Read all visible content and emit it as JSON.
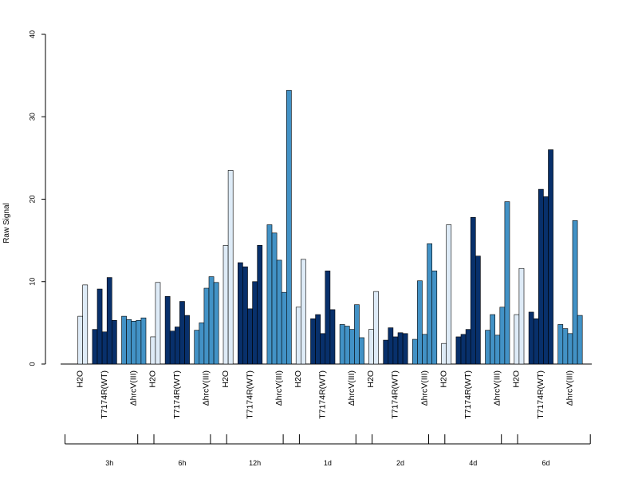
{
  "chart_data": {
    "type": "bar",
    "ylabel": "Raw Signal",
    "ylim": [
      0,
      40
    ],
    "yticks": [
      0,
      10,
      20,
      30,
      40
    ],
    "condition_colors": {
      "H2O": "#deebf7",
      "T7174R(WT)": "#08306b",
      "ΔhrcV(III)": "#4292c6"
    },
    "groups": [
      {
        "time": "3h",
        "conditions": [
          {
            "name": "H2O",
            "values": [
              0,
              5.8,
              9.6
            ]
          },
          {
            "name": "T7174R(WT)",
            "values": [
              4.2,
              9.1,
              3.9,
              10.5,
              5.3
            ]
          },
          {
            "name": "ΔhrcV(III)",
            "values": [
              5.8,
              5.4,
              5.2,
              5.3,
              5.6
            ]
          }
        ]
      },
      {
        "time": "6h",
        "conditions": [
          {
            "name": "H2O",
            "values": [
              0,
              3.3,
              9.9
            ]
          },
          {
            "name": "T7174R(WT)",
            "values": [
              8.2,
              4.0,
              4.5,
              7.6,
              5.9
            ]
          },
          {
            "name": "ΔhrcV(III)",
            "values": [
              4.1,
              5.0,
              9.2,
              10.6,
              9.9
            ]
          }
        ]
      },
      {
        "time": "12h",
        "conditions": [
          {
            "name": "H2O",
            "values": [
              0,
              14.4,
              23.5
            ]
          },
          {
            "name": "T7174R(WT)",
            "values": [
              12.3,
              11.8,
              6.7,
              10.0,
              14.4
            ]
          },
          {
            "name": "ΔhrcV(III)",
            "values": [
              16.9,
              15.9,
              12.6,
              8.7,
              33.2
            ]
          }
        ]
      },
      {
        "time": "1d",
        "conditions": [
          {
            "name": "H2O",
            "values": [
              0,
              6.9,
              12.7
            ]
          },
          {
            "name": "T7174R(WT)",
            "values": [
              5.5,
              6.0,
              3.7,
              11.3,
              6.6
            ]
          },
          {
            "name": "ΔhrcV(III)",
            "values": [
              4.8,
              4.6,
              4.2,
              7.2,
              3.2
            ]
          }
        ]
      },
      {
        "time": "2d",
        "conditions": [
          {
            "name": "H2O",
            "values": [
              0,
              4.2,
              8.8
            ]
          },
          {
            "name": "T7174R(WT)",
            "values": [
              2.9,
              4.4,
              3.3,
              3.8,
              3.7
            ]
          },
          {
            "name": "ΔhrcV(III)",
            "values": [
              3.0,
              10.1,
              3.6,
              14.6,
              11.3
            ]
          }
        ]
      },
      {
        "time": "4d",
        "conditions": [
          {
            "name": "H2O",
            "values": [
              0,
              2.5,
              16.9
            ]
          },
          {
            "name": "T7174R(WT)",
            "values": [
              3.3,
              3.6,
              4.2,
              17.8,
              13.1
            ]
          },
          {
            "name": "ΔhrcV(III)",
            "values": [
              4.1,
              6.0,
              3.5,
              6.9,
              19.7
            ]
          }
        ]
      },
      {
        "time": "6d",
        "conditions": [
          {
            "name": "H2O",
            "values": [
              0,
              6.0,
              11.6
            ]
          },
          {
            "name": "T7174R(WT)",
            "values": [
              6.3,
              5.5,
              21.2,
              20.3,
              26.0
            ]
          },
          {
            "name": "ΔhrcV(III)",
            "values": [
              4.8,
              4.3,
              3.7,
              17.4,
              5.9
            ]
          }
        ]
      }
    ]
  }
}
